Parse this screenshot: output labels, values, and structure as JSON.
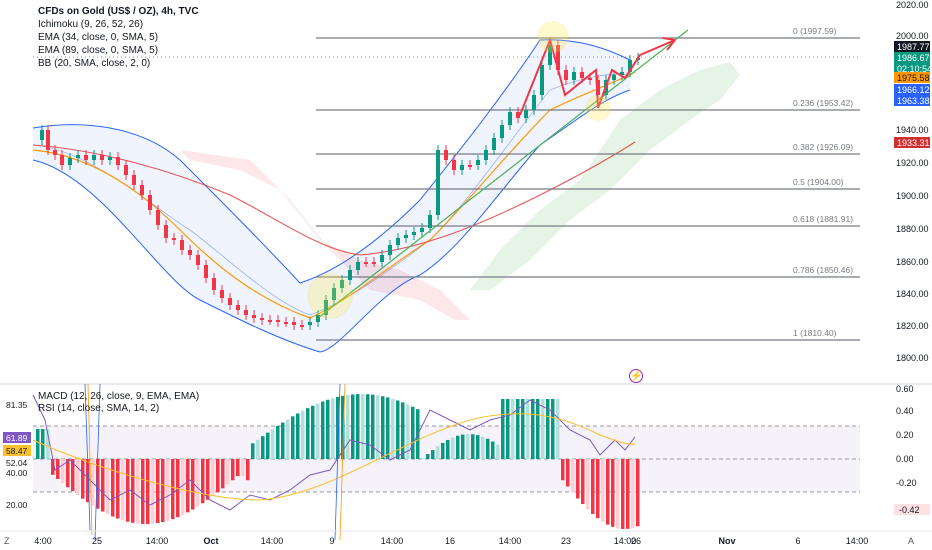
{
  "legend": {
    "title": "CFDs on Gold (US$ / OZ), 4h, TVC",
    "indicators": [
      "Ichimoku (9, 26, 52, 26)",
      "EMA (34, close, 0, SMA, 5)",
      "EMA (89, close, 0, SMA, 5)",
      "BB (20, SMA, close, 2, 0)"
    ]
  },
  "lower_legend": [
    "MACD (12, 26, close, 9, EMA, EMA)",
    "RSI (14, close, SMA, 14, 2)"
  ],
  "price_axis": [
    "2020.00",
    "2000.00",
    "1940.00",
    "1920.00",
    "1900.00",
    "1880.00",
    "1860.00",
    "1840.00",
    "1820.00",
    "1800.00"
  ],
  "price_badges": [
    {
      "text": "1987.77",
      "bg": "#131722",
      "fg": "#ffffff"
    },
    {
      "text": "1986.67",
      "bg": "#089981",
      "fg": "#ffffff"
    },
    {
      "text": "02:10:54",
      "bg": "#089981",
      "fg": "#ffffff"
    },
    {
      "text": "1975.58",
      "bg": "#ff9800",
      "fg": "#131722"
    },
    {
      "text": "1966.12",
      "bg": "#2962ff",
      "fg": "#ffffff"
    },
    {
      "text": "1963.38",
      "bg": "#2962ff",
      "fg": "#ffffff"
    },
    {
      "text": "1933.31",
      "bg": "#d32f2f",
      "fg": "#ffffff"
    }
  ],
  "fib_levels": [
    {
      "ratio": "0",
      "price": "1997.59"
    },
    {
      "ratio": "0.236",
      "price": "1953.42"
    },
    {
      "ratio": "0.382",
      "price": "1926.09"
    },
    {
      "ratio": "0.5",
      "price": "1904.00"
    },
    {
      "ratio": "0.618",
      "price": "1881.91"
    },
    {
      "ratio": "0.786",
      "price": "1850.46"
    },
    {
      "ratio": "1",
      "price": "1810.40"
    }
  ],
  "macd_axis": [
    "0.60",
    "0.40",
    "0.20",
    "0.00",
    "-0.20"
  ],
  "macd_badge": "-0.42",
  "rsi_axis_left": [
    "81.35",
    "40.00",
    "20.00"
  ],
  "rsi_badges": [
    {
      "text": "61.89",
      "bg": "#7e57c2",
      "fg": "#ffffff"
    },
    {
      "text": "58.47",
      "bg": "#fbc02d",
      "fg": "#131722"
    },
    {
      "text": "52.04",
      "bg": "#ffffff",
      "fg": "#131722"
    }
  ],
  "time_axis": [
    "4:00",
    "25",
    "14:00",
    "Oct",
    "14:00",
    "9",
    "14:00",
    "16",
    "14:00",
    "23",
    "14:00",
    "26",
    "Nov",
    "6",
    "14:00"
  ],
  "corner_left": "Z",
  "corner_right": "A",
  "colors": {
    "up": "#089981",
    "down": "#f23645",
    "bb": "#2962ff",
    "ema34": "#ff9800",
    "ema89": "#e53935",
    "fib": "#787b86",
    "rsi": "#7e57c2",
    "annotation": "#f23645"
  }
}
